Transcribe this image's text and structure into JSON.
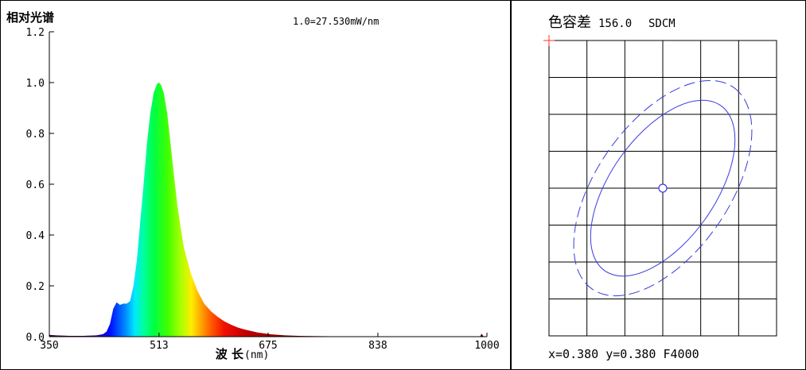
{
  "left_panel": {
    "title": "相对光谱",
    "scale_note": "1.0=27.530mW/nm",
    "x_label_cn": "波 长",
    "x_label_unit": "(nm)"
  },
  "right_panel": {
    "title": "色容差",
    "value": "156.0",
    "unit": "SDCM",
    "coords": "x=0.380 y=0.380 F4000"
  },
  "chart_data": [
    {
      "type": "area",
      "title": "相对光谱",
      "xlabel": "波 长(nm)",
      "ylabel": "",
      "xlim": [
        350,
        1000
      ],
      "ylim": [
        0,
        1.2
      ],
      "x_ticks": [
        "350",
        "513",
        "675",
        "838",
        "1000"
      ],
      "y_ticks": [
        "0.0",
        "0.2",
        "0.4",
        "0.6",
        "0.8",
        "1.0",
        "1.2"
      ],
      "x": [
        350,
        360,
        380,
        400,
        420,
        430,
        435,
        440,
        445,
        450,
        455,
        460,
        465,
        470,
        475,
        480,
        485,
        490,
        495,
        500,
        505,
        510,
        513,
        516,
        520,
        525,
        530,
        535,
        540,
        545,
        550,
        560,
        570,
        580,
        590,
        600,
        610,
        620,
        630,
        640,
        660,
        680,
        700,
        720,
        750,
        800,
        850,
        900,
        950,
        990,
        992,
        995,
        1000
      ],
      "values": [
        0.007,
        0.005,
        0.003,
        0.003,
        0.005,
        0.01,
        0.02,
        0.05,
        0.11,
        0.135,
        0.125,
        0.13,
        0.13,
        0.14,
        0.2,
        0.3,
        0.45,
        0.6,
        0.76,
        0.88,
        0.96,
        0.995,
        1.0,
        0.99,
        0.96,
        0.88,
        0.76,
        0.64,
        0.52,
        0.43,
        0.35,
        0.25,
        0.18,
        0.13,
        0.1,
        0.078,
        0.06,
        0.047,
        0.036,
        0.028,
        0.016,
        0.009,
        0.005,
        0.003,
        0.002,
        0.001,
        0.001,
        0.001,
        0.001,
        0.001,
        0.012,
        0.001,
        0.0
      ]
    },
    {
      "type": "scatter",
      "title": "色容差 156.0 SDCM",
      "grid": true,
      "center": {
        "x": 0.38,
        "y": 0.38
      }
    }
  ]
}
